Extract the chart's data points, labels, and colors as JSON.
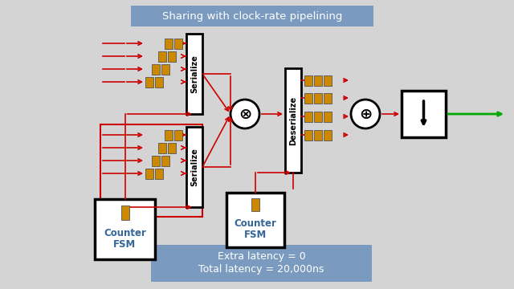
{
  "bg_color": "#d4d4d4",
  "title_box_color": "#7a9bbf",
  "title_text": "Sharing with clock-rate pipelining",
  "title_text_color": "white",
  "bottom_box_color": "#7a9bbf",
  "bottom_line1": "Extra latency = 0",
  "bottom_line2": "Total latency = 20,000ns",
  "bottom_text_color": "white",
  "arrow_color": "#cc0000",
  "green_arrow_color": "#00aa00",
  "block_edge_color": "black",
  "block_fill_color": "white",
  "register_color": "#cc8800",
  "counter_text_color": "#336699",
  "serialize_fontsize": 7.0,
  "title_fontsize": 9.5,
  "counter_fontsize": 8.5
}
